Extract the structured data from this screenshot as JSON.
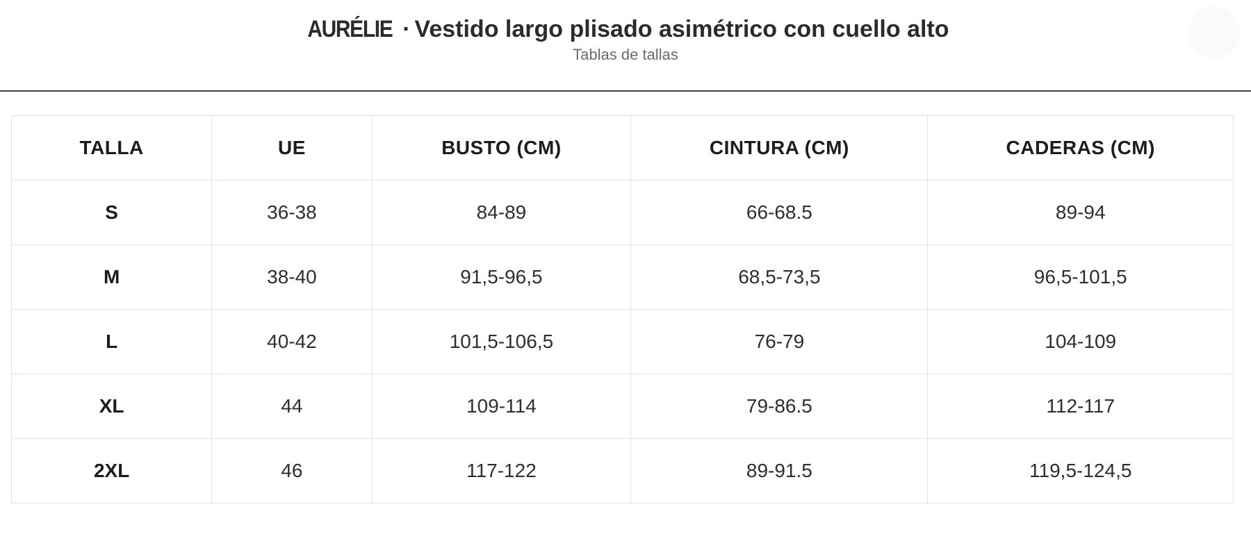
{
  "header": {
    "brand": "AURÉLIE",
    "separator": "·",
    "product_name": "Vestido largo plisado asimétrico con cuello alto",
    "subtitle": "Tablas de tallas"
  },
  "size_table": {
    "columns": [
      "TALLA",
      "UE",
      "BUSTO (CM)",
      "CINTURA (CM)",
      "CADERAS (CM)"
    ],
    "rows": [
      [
        "S",
        "36-38",
        "84-89",
        "66-68.5",
        "89-94"
      ],
      [
        "M",
        "38-40",
        "91,5-96,5",
        "68,5-73,5",
        "96,5-101,5"
      ],
      [
        "L",
        "40-42",
        "101,5-106,5",
        "76-79",
        "104-109"
      ],
      [
        "XL",
        "44",
        "109-114",
        "79-86.5",
        "112-117"
      ],
      [
        "2XL",
        "46",
        "117-122",
        "89-91.5",
        "119,5-124,5"
      ]
    ]
  },
  "colors": {
    "title_text": "#2b2b2b",
    "subtitle_text": "#6b6b6b",
    "divider_dark": "#424242",
    "table_border": "#e2e2e2",
    "cell_text": "#2e2e2e"
  }
}
